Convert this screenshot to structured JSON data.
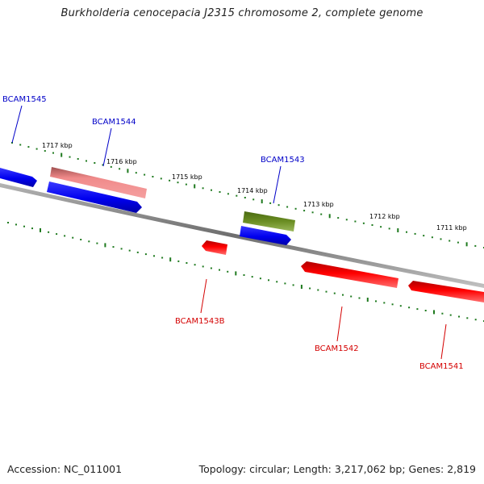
{
  "title": "Burkholderia cenocepacia J2315 chromosome 2, complete genome",
  "footer": {
    "accession": "Accession: NC_011001",
    "topology": "Topology: circular; Length: 3,217,062 bp; Genes: 2,819"
  },
  "colors": {
    "backbone": "#8a8a8a",
    "tick": "#1f7a1f",
    "forward_label": "#0000c8",
    "reverse_label": "#d40000",
    "blue_gene": "#0000ee",
    "pink_gene": "#f08a8a",
    "olive_gene": "#6b8e23",
    "red_gene": "#ee0000"
  },
  "ticks": [
    {
      "label": "1717 kbp"
    },
    {
      "label": "1716 kbp"
    },
    {
      "label": "1715 kbp"
    },
    {
      "label": "1714 kbp"
    },
    {
      "label": "1713 kbp"
    },
    {
      "label": "1712 kbp"
    },
    {
      "label": "1711 kbp"
    }
  ],
  "genes": [
    {
      "name": "BCAM1545",
      "strand": "forward"
    },
    {
      "name": "BCAM1544",
      "strand": "forward"
    },
    {
      "name": "BCAM1543",
      "strand": "forward"
    },
    {
      "name": "BCAM1543B",
      "strand": "reverse"
    },
    {
      "name": "BCAM1542",
      "strand": "reverse"
    },
    {
      "name": "BCAM1541",
      "strand": "reverse"
    }
  ]
}
